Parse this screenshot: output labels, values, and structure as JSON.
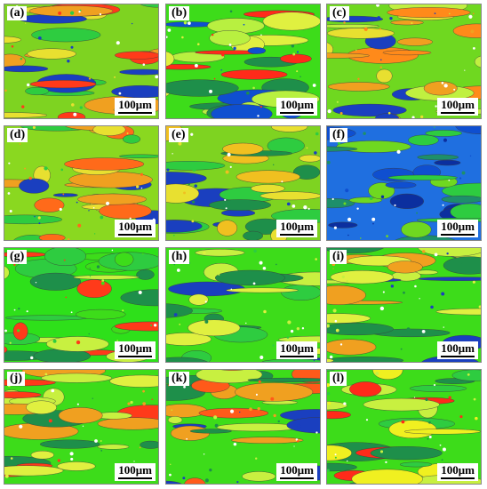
{
  "panels": [
    {
      "label": "(a)",
      "scale": "100μm",
      "base": "#7ed321",
      "bands": [
        "#e8e030",
        "#ff3a1a",
        "#2ecc40",
        "#f0a020",
        "#1a3fbf"
      ]
    },
    {
      "label": "(b)",
      "scale": "100μm",
      "base": "#3ddc1a",
      "bands": [
        "#b8f040",
        "#ff2a1a",
        "#1e8f4a",
        "#0f4fd0",
        "#e0f040"
      ]
    },
    {
      "label": "(c)",
      "scale": "100μm",
      "base": "#6fd820",
      "bands": [
        "#f0a020",
        "#e8e030",
        "#ff8a1a",
        "#1a3fbf",
        "#c0f040"
      ]
    },
    {
      "label": "(d)",
      "scale": "100μm",
      "base": "#8ad820",
      "bands": [
        "#f0a020",
        "#e8e030",
        "#2ecc40",
        "#1a3fbf",
        "#ff6a1a"
      ]
    },
    {
      "label": "(e)",
      "scale": "100μm",
      "base": "#7ed321",
      "bands": [
        "#e8e030",
        "#2ecc40",
        "#1a3fbf",
        "#f0c020",
        "#1e8f4a"
      ]
    },
    {
      "label": "(f)",
      "scale": "100μm",
      "base": "#1f6fe0",
      "bands": [
        "#2ecc40",
        "#0b2f9f",
        "#6fd820",
        "#1e8f6a",
        "#0f4fd0"
      ]
    },
    {
      "label": "(g)",
      "scale": "100μm",
      "base": "#2ee01a",
      "bands": [
        "#ff3a1a",
        "#1e8f4a",
        "#c8f040",
        "#3ddc1a",
        "#2ecc40"
      ]
    },
    {
      "label": "(h)",
      "scale": "100μm",
      "base": "#3ddc1a",
      "bands": [
        "#1e8f4a",
        "#c8f040",
        "#1a3fbf",
        "#2ecc40",
        "#e0f040"
      ]
    },
    {
      "label": "(i)",
      "scale": "100μm",
      "base": "#3ddc1a",
      "bands": [
        "#f0a020",
        "#c8f040",
        "#1e8f4a",
        "#1a3fbf",
        "#e0f040"
      ]
    },
    {
      "label": "(j)",
      "scale": "100μm",
      "base": "#3ddc1a",
      "bands": [
        "#c8f040",
        "#ff3a1a",
        "#f0a020",
        "#1e8f4a",
        "#e0f040"
      ]
    },
    {
      "label": "(k)",
      "scale": "100μm",
      "base": "#3ddc1a",
      "bands": [
        "#ff5a1a",
        "#f0a020",
        "#1e8f4a",
        "#1a3fbf",
        "#c8f040"
      ]
    },
    {
      "label": "(l)",
      "scale": "100μm",
      "base": "#3ddc1a",
      "bands": [
        "#f0f020",
        "#ff2a1a",
        "#1e8f4a",
        "#c8f040",
        "#2ecc40"
      ]
    }
  ]
}
